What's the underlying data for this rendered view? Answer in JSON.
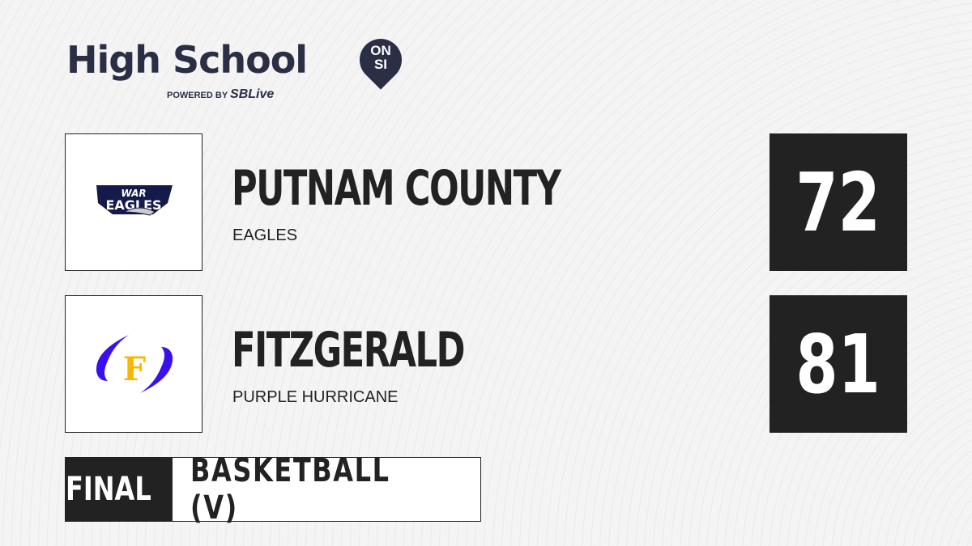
{
  "brand": {
    "title": "High School",
    "badge_top": "ON",
    "badge_bottom": "SI",
    "powered_by": "POWERED BY",
    "partner": "SBLive"
  },
  "teams": [
    {
      "name": "PUTNAM COUNTY",
      "mascot": "EAGLES",
      "score": "72",
      "logo_text": "WAR EAGLES"
    },
    {
      "name": "FITZGERALD",
      "mascot": "PURPLE HURRICANE",
      "score": "81",
      "logo_text": "F"
    }
  ],
  "status": "FINAL",
  "sport": "BASKETBALL (V)"
}
